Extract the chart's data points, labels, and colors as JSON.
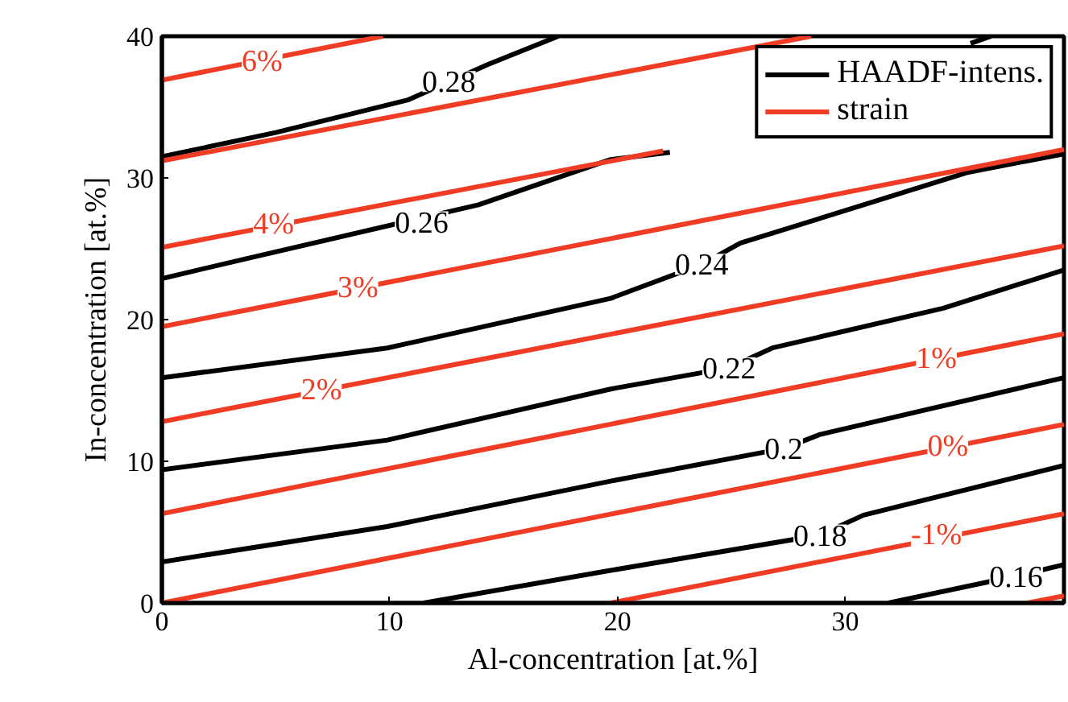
{
  "chart_data": {
    "type": "line",
    "xlabel": "Al-concentration [at.%]",
    "ylabel": "In-concentration [at.%]",
    "xlim": [
      0,
      39.6
    ],
    "ylim": [
      0,
      40
    ],
    "xticks": [
      0,
      10,
      20,
      30
    ],
    "yticks": [
      0,
      10,
      20,
      30,
      40
    ],
    "grid": false,
    "legend": "top right",
    "marker": "none",
    "line_style": "solid",
    "series": [
      {
        "name": "HAADF-intens.",
        "color": "#000000",
        "x": [
          0,
          5,
          10.8,
          14.3,
          17.4
        ],
        "values": [
          31.5,
          33.2,
          35.5,
          38.0,
          40
        ]
      },
      {
        "color": "#000000",
        "x": [
          0,
          3.7,
          13.9,
          19.7,
          22.3
        ],
        "values": [
          22.9,
          24.3,
          28.1,
          31.3,
          31.8
        ]
      },
      {
        "color": "#000000",
        "x": [
          35.5,
          36.4
        ],
        "values": [
          39.5,
          40
        ]
      },
      {
        "color": "#000000",
        "x": [
          0,
          9.9,
          19.7,
          23.7,
          25.4,
          35.4,
          39.6
        ],
        "values": [
          15.9,
          18.0,
          21.5,
          23.9,
          25.4,
          30.4,
          31.7
        ]
      },
      {
        "color": "#000000",
        "x": [
          0,
          9.9,
          19.7,
          24.9,
          26.8,
          34.3,
          39.6
        ],
        "values": [
          9.4,
          11.5,
          15.1,
          16.6,
          18.0,
          20.8,
          23.5
        ]
      },
      {
        "color": "#000000",
        "x": [
          0,
          9.9,
          19.7,
          27.3,
          28.9,
          39.6
        ],
        "values": [
          2.9,
          5.4,
          8.6,
          10.9,
          11.9,
          15.9
        ]
      },
      {
        "color": "#000000",
        "x": [
          11.5,
          19.7,
          28.9,
          30.8,
          39.6
        ],
        "values": [
          0,
          2.3,
          4.8,
          6.2,
          9.7
        ]
      },
      {
        "color": "#000000",
        "x": [
          31.9,
          37.5,
          39.6
        ],
        "values": [
          0,
          1.9,
          2.7
        ]
      },
      {
        "name": "strain",
        "color": "#f03c24",
        "x": [
          0,
          9.7
        ],
        "values": [
          36.9,
          40
        ]
      },
      {
        "color": "#f03c24",
        "x": [
          0,
          28.5
        ],
        "values": [
          31.2,
          40
        ]
      },
      {
        "color": "#f03c24",
        "x": [
          0,
          22
        ],
        "values": [
          25.1,
          31.9
        ]
      },
      {
        "color": "#f03c24",
        "x": [
          0,
          39.6
        ],
        "values": [
          19.5,
          32.0
        ]
      },
      {
        "color": "#f03c24",
        "x": [
          0,
          39.6
        ],
        "values": [
          12.8,
          25.2
        ]
      },
      {
        "color": "#f03c24",
        "x": [
          0,
          39.6
        ],
        "values": [
          6.3,
          19.0
        ]
      },
      {
        "color": "#f03c24",
        "x": [
          0,
          39.6
        ],
        "values": [
          0,
          12.6
        ]
      },
      {
        "color": "#f03c24",
        "x": [
          19.7,
          39.6
        ],
        "values": [
          0,
          6.3
        ]
      },
      {
        "color": "#f03c24",
        "x": [
          38.0,
          39.6
        ],
        "values": [
          0,
          0.5
        ]
      }
    ],
    "annotations": [
      {
        "text": "0.28",
        "x": 12.6,
        "y": 36.8
      },
      {
        "text": "0.26",
        "x": 11.4,
        "y": 26.9
      },
      {
        "text": "0.24",
        "x": 23.7,
        "y": 23.9
      },
      {
        "text": "0.22",
        "x": 24.9,
        "y": 16.6
      },
      {
        "text": "0.2",
        "x": 27.3,
        "y": 10.9
      },
      {
        "text": "0.18",
        "x": 28.9,
        "y": 4.8
      },
      {
        "text": "0.16",
        "x": 37.5,
        "y": 1.9
      },
      {
        "text": "6%",
        "x": 4.4,
        "y": 38.2
      },
      {
        "text": "4%",
        "x": 4.9,
        "y": 26.7
      },
      {
        "text": "3%",
        "x": 8.6,
        "y": 22.2
      },
      {
        "text": "2%",
        "x": 7.0,
        "y": 15.0
      },
      {
        "text": "1%",
        "x": 34.0,
        "y": 17.2
      },
      {
        "text": "0%",
        "x": 34.5,
        "y": 11.0
      },
      {
        "text": "-1%",
        "x": 34.0,
        "y": 4.8
      }
    ]
  }
}
